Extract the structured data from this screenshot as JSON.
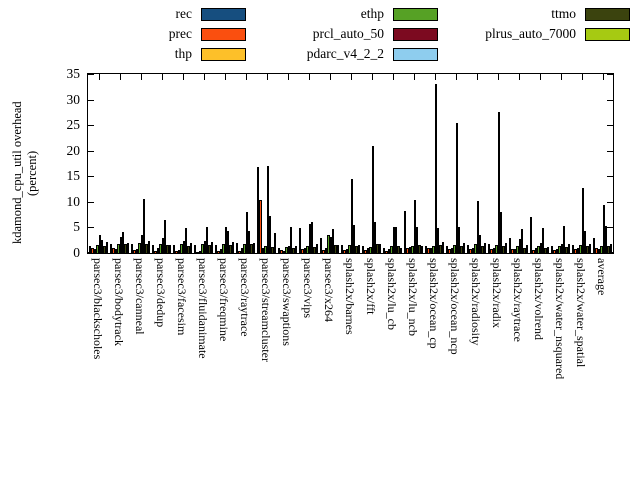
{
  "y_axis": {
    "title_line1": "kdamond_cpu_util overhead",
    "title_line2": "(percent)"
  },
  "chart_data": {
    "type": "bar",
    "title": "",
    "xlabel": "",
    "ylabel": "kdamond_cpu_util overhead (percent)",
    "ylim": [
      0,
      35
    ],
    "yticks": [
      0,
      5,
      10,
      15,
      20,
      25,
      30,
      35
    ],
    "grid": false,
    "legend_position": "top (3 columns, column-major)",
    "categories": [
      "parsec3/blackscholes",
      "parsec3/bodytrack",
      "parsec3/canneal",
      "parsec3/dedup",
      "parsec3/facesim",
      "parsec3/fluidanimate",
      "parsec3/freqmine",
      "parsec3/raytrace",
      "parsec3/streamcluster",
      "parsec3/swaptions",
      "parsec3/vips",
      "parsec3/x264",
      "splash2x/barnes",
      "splash2x/fft",
      "splash2x/lu_cb",
      "splash2x/lu_ncb",
      "splash2x/ocean_cp",
      "splash2x/ocean_ncp",
      "splash2x/radiosity",
      "splash2x/radix",
      "splash2x/raytrace",
      "splash2x/volrend",
      "splash2x/water_nsquared",
      "splash2x/water_spatial",
      "average"
    ],
    "series": [
      {
        "name": "rec",
        "color": "#164e7f",
        "values": [
          1.4,
          1.8,
          1.8,
          1.5,
          1.6,
          1.6,
          1.5,
          1.9,
          16.9,
          0.9,
          4.8,
          3.0,
          1.6,
          1.4,
          0.9,
          8.2,
          1.4,
          1.4,
          1.5,
          1.7,
          3.0,
          7.0,
          1.3,
          1.5,
          2.9
        ]
      },
      {
        "name": "prec",
        "color": "#fa4f0f",
        "values": [
          0.9,
          1.0,
          0.5,
          0.4,
          0.3,
          0.2,
          0.3,
          0.4,
          10.4,
          0.5,
          0.7,
          0.5,
          0.6,
          0.6,
          0.4,
          1.0,
          0.9,
          0.8,
          0.7,
          0.7,
          0.7,
          0.5,
          0.5,
          0.7,
          1.0
        ]
      },
      {
        "name": "thp",
        "color": "#fdc029",
        "values": [
          0.7,
          0.8,
          0.7,
          0.9,
          0.6,
          0.4,
          0.7,
          0.9,
          1.0,
          0.4,
          0.9,
          0.9,
          0.8,
          0.9,
          0.7,
          1.2,
          1.0,
          1.0,
          1.0,
          1.0,
          0.8,
          0.9,
          0.7,
          0.9,
          0.8
        ]
      },
      {
        "name": "ethp",
        "color": "#56a125",
        "values": [
          1.5,
          1.7,
          2.0,
          1.7,
          1.7,
          1.8,
          1.7,
          1.7,
          1.4,
          1.1,
          1.4,
          3.5,
          1.5,
          1.2,
          1.4,
          1.4,
          1.4,
          1.5,
          1.7,
          1.5,
          1.4,
          1.3,
          1.4,
          1.6,
          1.4
        ]
      },
      {
        "name": "prcl_auto_50",
        "color": "#7c0a20",
        "values": [
          3.6,
          3.1,
          3.5,
          2.9,
          2.4,
          2.3,
          5.1,
          8.0,
          17.1,
          1.3,
          5.7,
          3.2,
          14.5,
          21.0,
          5.0,
          10.4,
          33.0,
          25.5,
          10.2,
          27.5,
          2.8,
          2.0,
          1.7,
          12.8,
          9.3
        ]
      },
      {
        "name": "pdarc_v4_2_2",
        "color": "#8ecdee",
        "values": [
          2.5,
          4.2,
          10.6,
          6.5,
          4.9,
          5.0,
          4.4,
          4.4,
          7.2,
          5.0,
          6.1,
          4.7,
          5.5,
          6.1,
          5.1,
          5.1,
          4.8,
          5.1,
          3.5,
          8.1,
          4.6,
          4.8,
          5.3,
          4.4,
          5.3
        ]
      },
      {
        "name": "ttmo",
        "color": "#3b430e",
        "values": [
          1.4,
          1.7,
          1.7,
          1.6,
          1.4,
          1.5,
          1.5,
          1.7,
          1.2,
          1.0,
          1.2,
          1.6,
          1.3,
          1.7,
          1.4,
          1.6,
          1.5,
          1.4,
          1.4,
          1.4,
          1.0,
          1.0,
          1.2,
          1.3,
          1.4
        ]
      },
      {
        "name": "plrus_auto_7000",
        "color": "#a6ca12",
        "values": [
          2.2,
          2.0,
          2.3,
          1.5,
          1.9,
          2.1,
          2.2,
          2.0,
          4.0,
          1.3,
          1.8,
          1.6,
          1.5,
          1.8,
          1.0,
          1.4,
          2.2,
          2.0,
          1.9,
          1.9,
          1.5,
          1.2,
          1.7,
          1.7,
          1.8
        ]
      }
    ]
  }
}
